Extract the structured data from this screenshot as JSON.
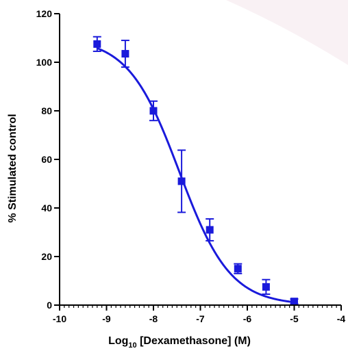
{
  "chart_data": {
    "type": "scatter",
    "title": "",
    "xlabel_prefix": "Log",
    "xlabel_sub": "10",
    "xlabel_suffix": " [Dexamethasone] (M)",
    "ylabel": "% Stimulated control",
    "xlim": [
      -10,
      -4
    ],
    "ylim": [
      0,
      120
    ],
    "xticks": [
      -10,
      -9,
      -8,
      -7,
      -6,
      -5,
      -4
    ],
    "yticks": [
      0,
      20,
      40,
      60,
      80,
      100,
      120
    ],
    "x_minor_step": 0.1,
    "grid": false,
    "series": [
      {
        "color": "#1a1adb",
        "marker": "square",
        "points": [
          {
            "x": -9.2,
            "y": 107.5,
            "err": 3
          },
          {
            "x": -8.6,
            "y": 103.5,
            "err": 5.5
          },
          {
            "x": -8.0,
            "y": 80,
            "err": 4
          },
          {
            "x": -7.4,
            "y": 51,
            "err": 12.8
          },
          {
            "x": -6.8,
            "y": 31,
            "err": 4.5
          },
          {
            "x": -6.2,
            "y": 15,
            "err": 2
          },
          {
            "x": -5.6,
            "y": 7.5,
            "err": 3
          },
          {
            "x": -5.0,
            "y": 1.5,
            "err": 1
          }
        ],
        "fit": {
          "model": "sigmoidal dose-response",
          "top": 110,
          "bottom": 0,
          "log_ic50": -7.45,
          "hill_slope": -0.8
        }
      }
    ]
  }
}
